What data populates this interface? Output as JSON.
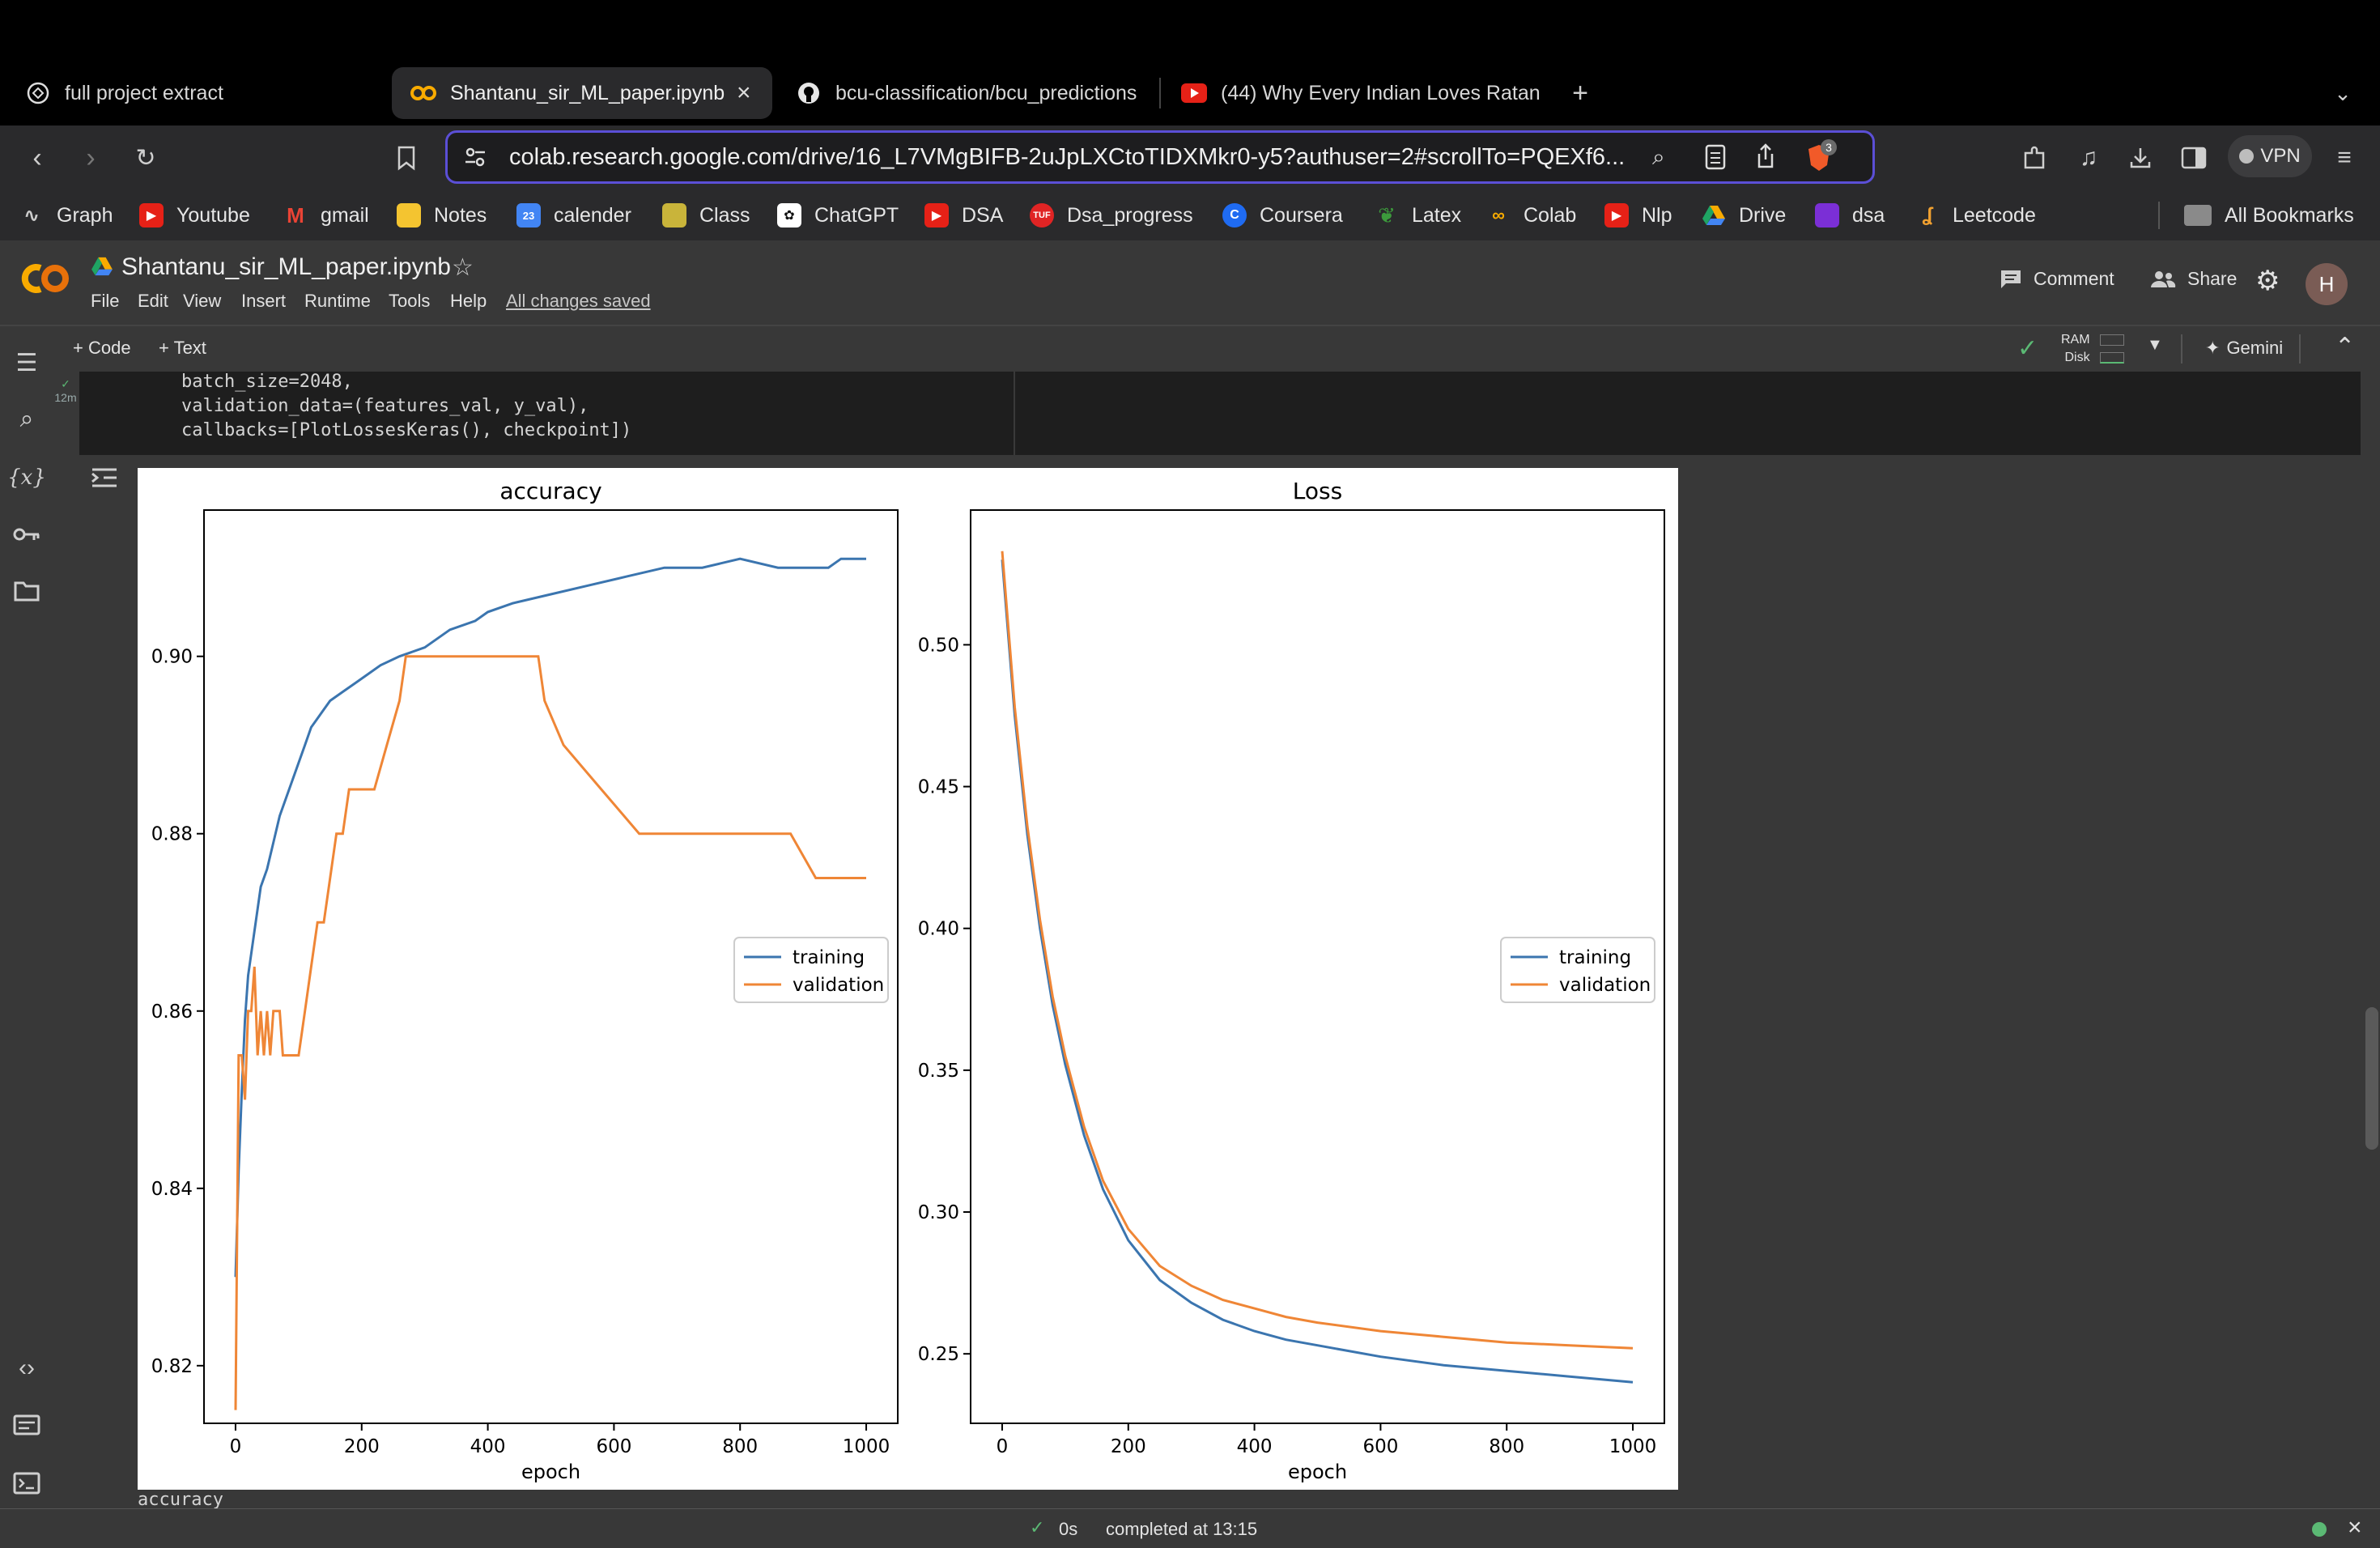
{
  "tabs": [
    {
      "title": "full project extract",
      "icon": "chatgpt-icon"
    },
    {
      "title": "Shantanu_sir_ML_paper.ipynb",
      "icon": "colab-icon",
      "active": true
    },
    {
      "title": "bcu-classification/bcu_predictions",
      "icon": "github-icon"
    },
    {
      "title": "(44) Why Every Indian Loves Ratan",
      "icon": "youtube-icon"
    }
  ],
  "url": "colab.research.google.com/drive/16_L7VMgBIFB-2uJpLXCtoTIDXMkr0-y5?authuser=2#scrollTo=PQEXf6...",
  "vpn_label": "VPN",
  "brave_badge": "3",
  "bookmarks": [
    {
      "label": "Graph",
      "color": "#1c1c1c"
    },
    {
      "label": "Youtube",
      "color": "#e62117"
    },
    {
      "label": "gmail",
      "color": "#ea4335"
    },
    {
      "label": "Notes",
      "color": "#f4c430"
    },
    {
      "label": "calender",
      "color": "#4285f4"
    },
    {
      "label": "Class",
      "color": "#c9b43a"
    },
    {
      "label": "ChatGPT",
      "color": "#2b2b2b"
    },
    {
      "label": "DSA",
      "color": "#e62117"
    },
    {
      "label": "Dsa_progress",
      "color": "#e02424"
    },
    {
      "label": "Coursera",
      "color": "#1f6bf2"
    },
    {
      "label": "Latex",
      "color": "#3c9a3c"
    },
    {
      "label": "Colab",
      "color": "#f9ab00"
    },
    {
      "label": "Nlp",
      "color": "#e62117"
    },
    {
      "label": "Drive",
      "color": "#1fa463"
    },
    {
      "label": "dsa",
      "color": "#7b2fd6"
    },
    {
      "label": "Leetcode",
      "color": "#f0a030"
    }
  ],
  "all_bookmarks": "All Bookmarks",
  "notebook": {
    "name": "Shantanu_sir_ML_paper.ipynb",
    "menu": [
      "File",
      "Edit",
      "View",
      "Insert",
      "Runtime",
      "Tools",
      "Help"
    ],
    "saved_status": "All changes saved",
    "comment_label": "Comment",
    "share_label": "Share",
    "avatar_letter": "H",
    "add_code": "+ Code",
    "add_text": "+ Text",
    "ram_label": "RAM",
    "disk_label": "Disk",
    "gemini_label": "Gemini",
    "exec_time": "12m",
    "code_lines": [
      "batch_size=2048,",
      "validation_data=(features_val, y_val),",
      "callbacks=[PlotLossesKeras(), checkpoint])"
    ],
    "output_trailing_text": "accuracy"
  },
  "status": {
    "duration": "0s",
    "completed": "completed at 13:15"
  },
  "chart_data": [
    {
      "type": "line",
      "title": "accuracy",
      "xlabel": "epoch",
      "ylabel": "",
      "xlim": [
        -50,
        1050
      ],
      "ylim": [
        0.8135,
        0.9165
      ],
      "xticks": [
        0,
        200,
        400,
        600,
        800,
        1000
      ],
      "yticks": [
        0.82,
        0.84,
        0.86,
        0.88,
        0.9
      ],
      "ytick_labels": [
        "0.82",
        "0.84",
        "0.86",
        "0.88",
        "0.90"
      ],
      "legend": "center-right",
      "series": [
        {
          "name": "training",
          "color": "#3b75af",
          "x": [
            0,
            5,
            10,
            15,
            20,
            30,
            40,
            50,
            60,
            70,
            80,
            90,
            100,
            110,
            120,
            130,
            140,
            150,
            170,
            190,
            210,
            230,
            260,
            300,
            340,
            380,
            400,
            440,
            500,
            560,
            620,
            680,
            740,
            800,
            860,
            920,
            940,
            960,
            1000
          ],
          "y": [
            0.83,
            0.842,
            0.851,
            0.859,
            0.864,
            0.869,
            0.874,
            0.876,
            0.879,
            0.882,
            0.884,
            0.886,
            0.888,
            0.89,
            0.892,
            0.893,
            0.894,
            0.895,
            0.896,
            0.897,
            0.898,
            0.899,
            0.9,
            0.901,
            0.903,
            0.904,
            0.905,
            0.906,
            0.907,
            0.908,
            0.909,
            0.91,
            0.91,
            0.911,
            0.91,
            0.91,
            0.91,
            0.911,
            0.911
          ]
        },
        {
          "name": "validation",
          "color": "#ef8636",
          "x": [
            0,
            5,
            10,
            15,
            20,
            25,
            30,
            35,
            40,
            45,
            50,
            55,
            60,
            65,
            70,
            75,
            80,
            90,
            100,
            110,
            120,
            130,
            140,
            150,
            160,
            170,
            180,
            200,
            220,
            240,
            260,
            270,
            300,
            360,
            420,
            480,
            490,
            520,
            580,
            640,
            700,
            760,
            800,
            880,
            920,
            1000
          ],
          "y": [
            0.815,
            0.855,
            0.855,
            0.85,
            0.86,
            0.86,
            0.865,
            0.855,
            0.86,
            0.855,
            0.86,
            0.855,
            0.86,
            0.86,
            0.86,
            0.855,
            0.855,
            0.855,
            0.855,
            0.86,
            0.865,
            0.87,
            0.87,
            0.875,
            0.88,
            0.88,
            0.885,
            0.885,
            0.885,
            0.89,
            0.895,
            0.9,
            0.9,
            0.9,
            0.9,
            0.9,
            0.895,
            0.89,
            0.885,
            0.88,
            0.88,
            0.88,
            0.88,
            0.88,
            0.875,
            0.875
          ]
        }
      ]
    },
    {
      "type": "line",
      "title": "Loss",
      "xlabel": "epoch",
      "ylabel": "",
      "xlim": [
        -50,
        1050
      ],
      "ylim": [
        0.2255,
        0.5475
      ],
      "xticks": [
        0,
        200,
        400,
        600,
        800,
        1000
      ],
      "yticks": [
        0.25,
        0.3,
        0.35,
        0.4,
        0.45,
        0.5
      ],
      "ytick_labels": [
        "0.25",
        "0.30",
        "0.35",
        "0.40",
        "0.45",
        "0.50"
      ],
      "legend": "center-right",
      "series": [
        {
          "name": "training",
          "color": "#3b75af",
          "x": [
            0,
            20,
            40,
            60,
            80,
            100,
            130,
            160,
            200,
            250,
            300,
            350,
            400,
            450,
            500,
            600,
            700,
            800,
            900,
            1000
          ],
          "y": [
            0.53,
            0.475,
            0.433,
            0.4,
            0.373,
            0.352,
            0.327,
            0.308,
            0.29,
            0.276,
            0.268,
            0.262,
            0.258,
            0.255,
            0.253,
            0.249,
            0.246,
            0.244,
            0.242,
            0.24
          ]
        },
        {
          "name": "validation",
          "color": "#ef8636",
          "x": [
            0,
            20,
            40,
            60,
            80,
            100,
            130,
            160,
            200,
            250,
            300,
            350,
            400,
            450,
            500,
            600,
            700,
            800,
            900,
            1000
          ],
          "y": [
            0.533,
            0.478,
            0.436,
            0.403,
            0.376,
            0.355,
            0.33,
            0.311,
            0.294,
            0.281,
            0.274,
            0.269,
            0.266,
            0.263,
            0.261,
            0.258,
            0.256,
            0.254,
            0.253,
            0.252
          ]
        }
      ]
    }
  ]
}
